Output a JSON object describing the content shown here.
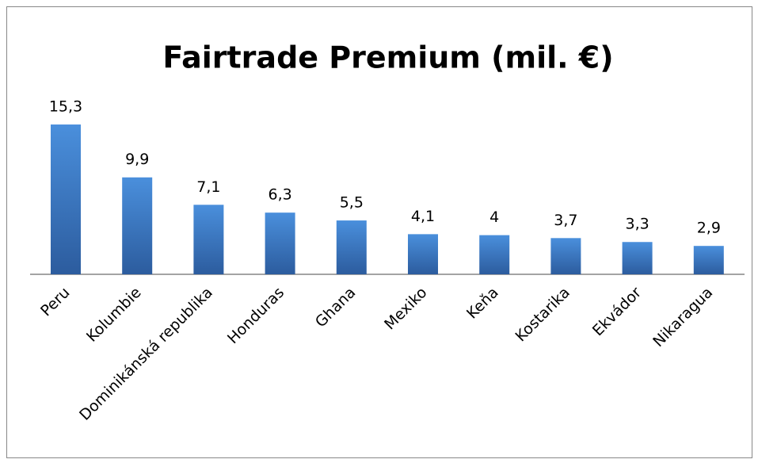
{
  "chart_data": {
    "type": "bar",
    "title": "Fairtrade Premium (mil. €)",
    "categories": [
      "Peru",
      "Kolumbie",
      "Dominikánská republika",
      "Honduras",
      "Ghana",
      "Mexiko",
      "Keňa",
      "Kostarika",
      "Ekvádor",
      "Nikaragua"
    ],
    "values": [
      15.3,
      9.9,
      7.1,
      6.3,
      5.5,
      4.1,
      4,
      3.7,
      3.3,
      2.9
    ],
    "value_labels": [
      "15,3",
      "9,9",
      "7,1",
      "6,3",
      "5,5",
      "4,1",
      "4",
      "3,7",
      "3,3",
      "2,9"
    ],
    "color": "#3a78c4"
  }
}
